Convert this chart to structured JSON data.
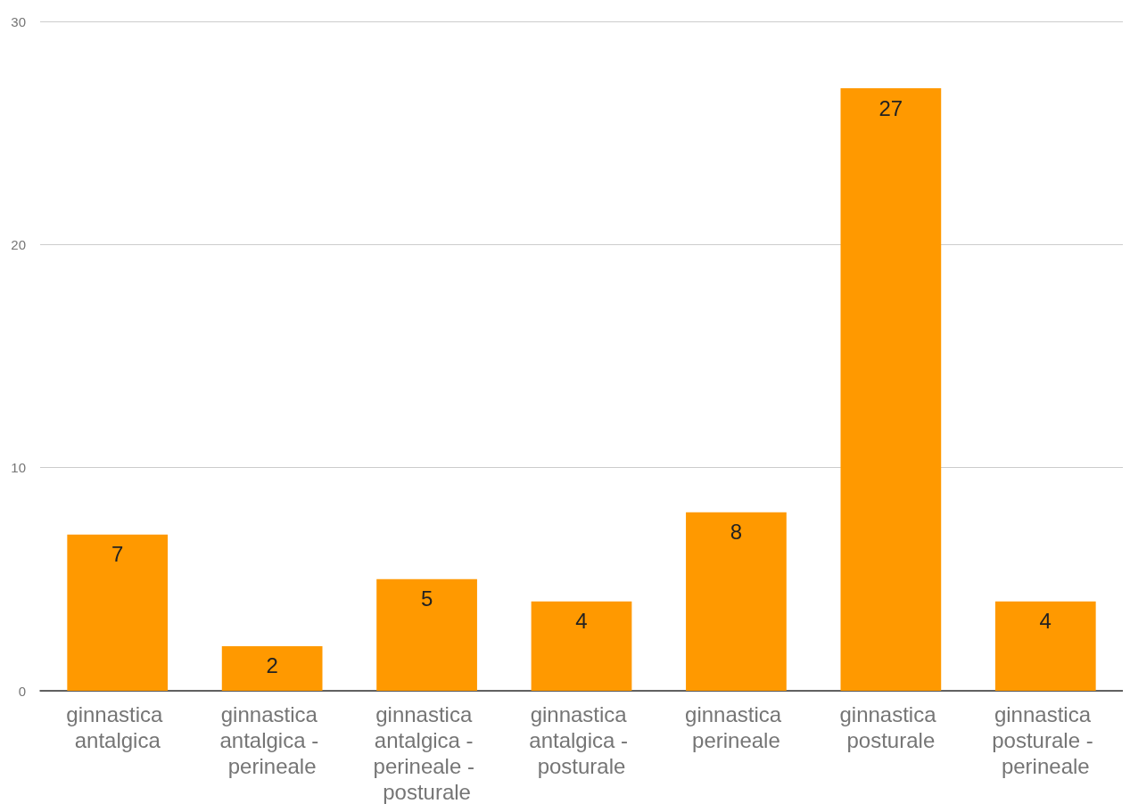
{
  "chart_data": {
    "type": "bar",
    "categories": [
      "ginnastica antalgica",
      "ginnastica antalgica - perineale",
      "ginnastica antalgica - perineale - posturale",
      "ginnastica antalgica - posturale",
      "ginnastica perineale",
      "ginnastica posturale",
      "ginnastica posturale - perineale"
    ],
    "values": [
      7,
      2,
      5,
      4,
      8,
      27,
      4
    ],
    "color": "#ff9900",
    "ylim": [
      0,
      30
    ],
    "yticks": [
      0,
      10,
      20,
      30
    ],
    "grid": "y",
    "data_labels": true
  }
}
